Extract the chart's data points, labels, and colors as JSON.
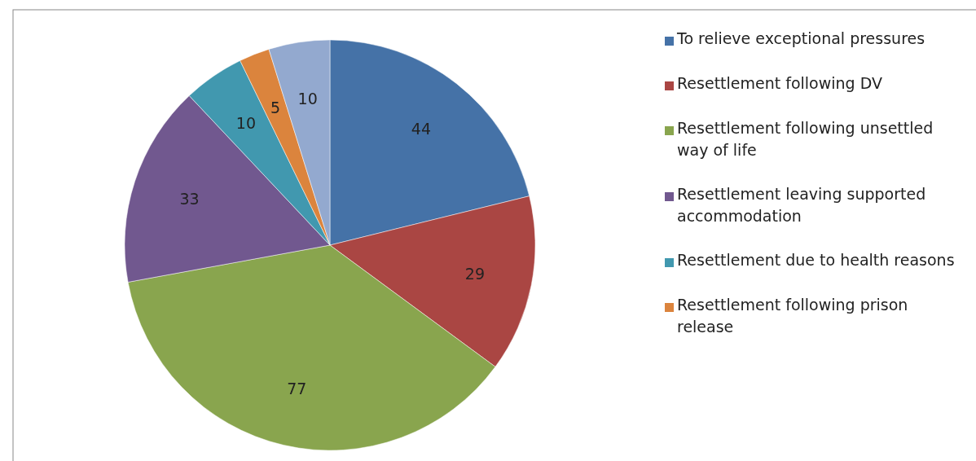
{
  "chart_data": {
    "type": "pie",
    "categories": [
      "To relieve exceptional pressures",
      "Resettlement following DV",
      "Resettlement following unsettled way of life",
      "Resettlement leaving supported accommodation",
      "Resettlement due to health reasons",
      "Resettlement following prison release",
      null
    ],
    "values": [
      44,
      29,
      77,
      33,
      10,
      5,
      10
    ],
    "colors": [
      "#4572a7",
      "#aa4643",
      "#89a54e",
      "#71588f",
      "#4198af",
      "#db843d",
      "#93a9cf"
    ],
    "data_labels": true,
    "legend": "right"
  }
}
